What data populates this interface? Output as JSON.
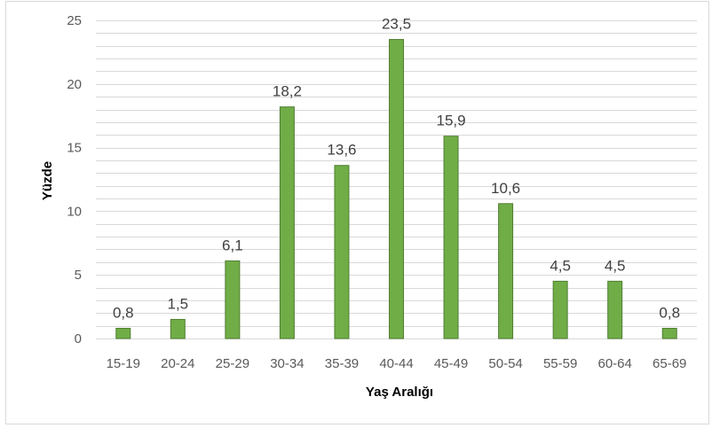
{
  "chart_data": {
    "type": "bar",
    "categories": [
      "15-19",
      "20-24",
      "25-29",
      "30-34",
      "35-39",
      "40-44",
      "45-49",
      "50-54",
      "55-59",
      "60-64",
      "65-69"
    ],
    "values": [
      0.8,
      1.5,
      6.1,
      18.2,
      13.6,
      23.5,
      15.9,
      10.6,
      4.5,
      4.5,
      0.8
    ],
    "data_labels": [
      "0,8",
      "1,5",
      "6,1",
      "18,2",
      "13,6",
      "23,5",
      "15,9",
      "10,6",
      "4,5",
      "4,5",
      "0,8"
    ],
    "xlabel": "Yaş Aralığı",
    "ylabel": "Yüzde",
    "ylim": [
      0,
      25
    ],
    "yticks": [
      "0",
      "5",
      "10",
      "15",
      "20",
      "25"
    ],
    "grid": true,
    "legend": "none",
    "colors": {
      "bar_fill": "#70AD47",
      "bar_stroke": "#507E32",
      "grid": "#d9d9d9"
    }
  }
}
